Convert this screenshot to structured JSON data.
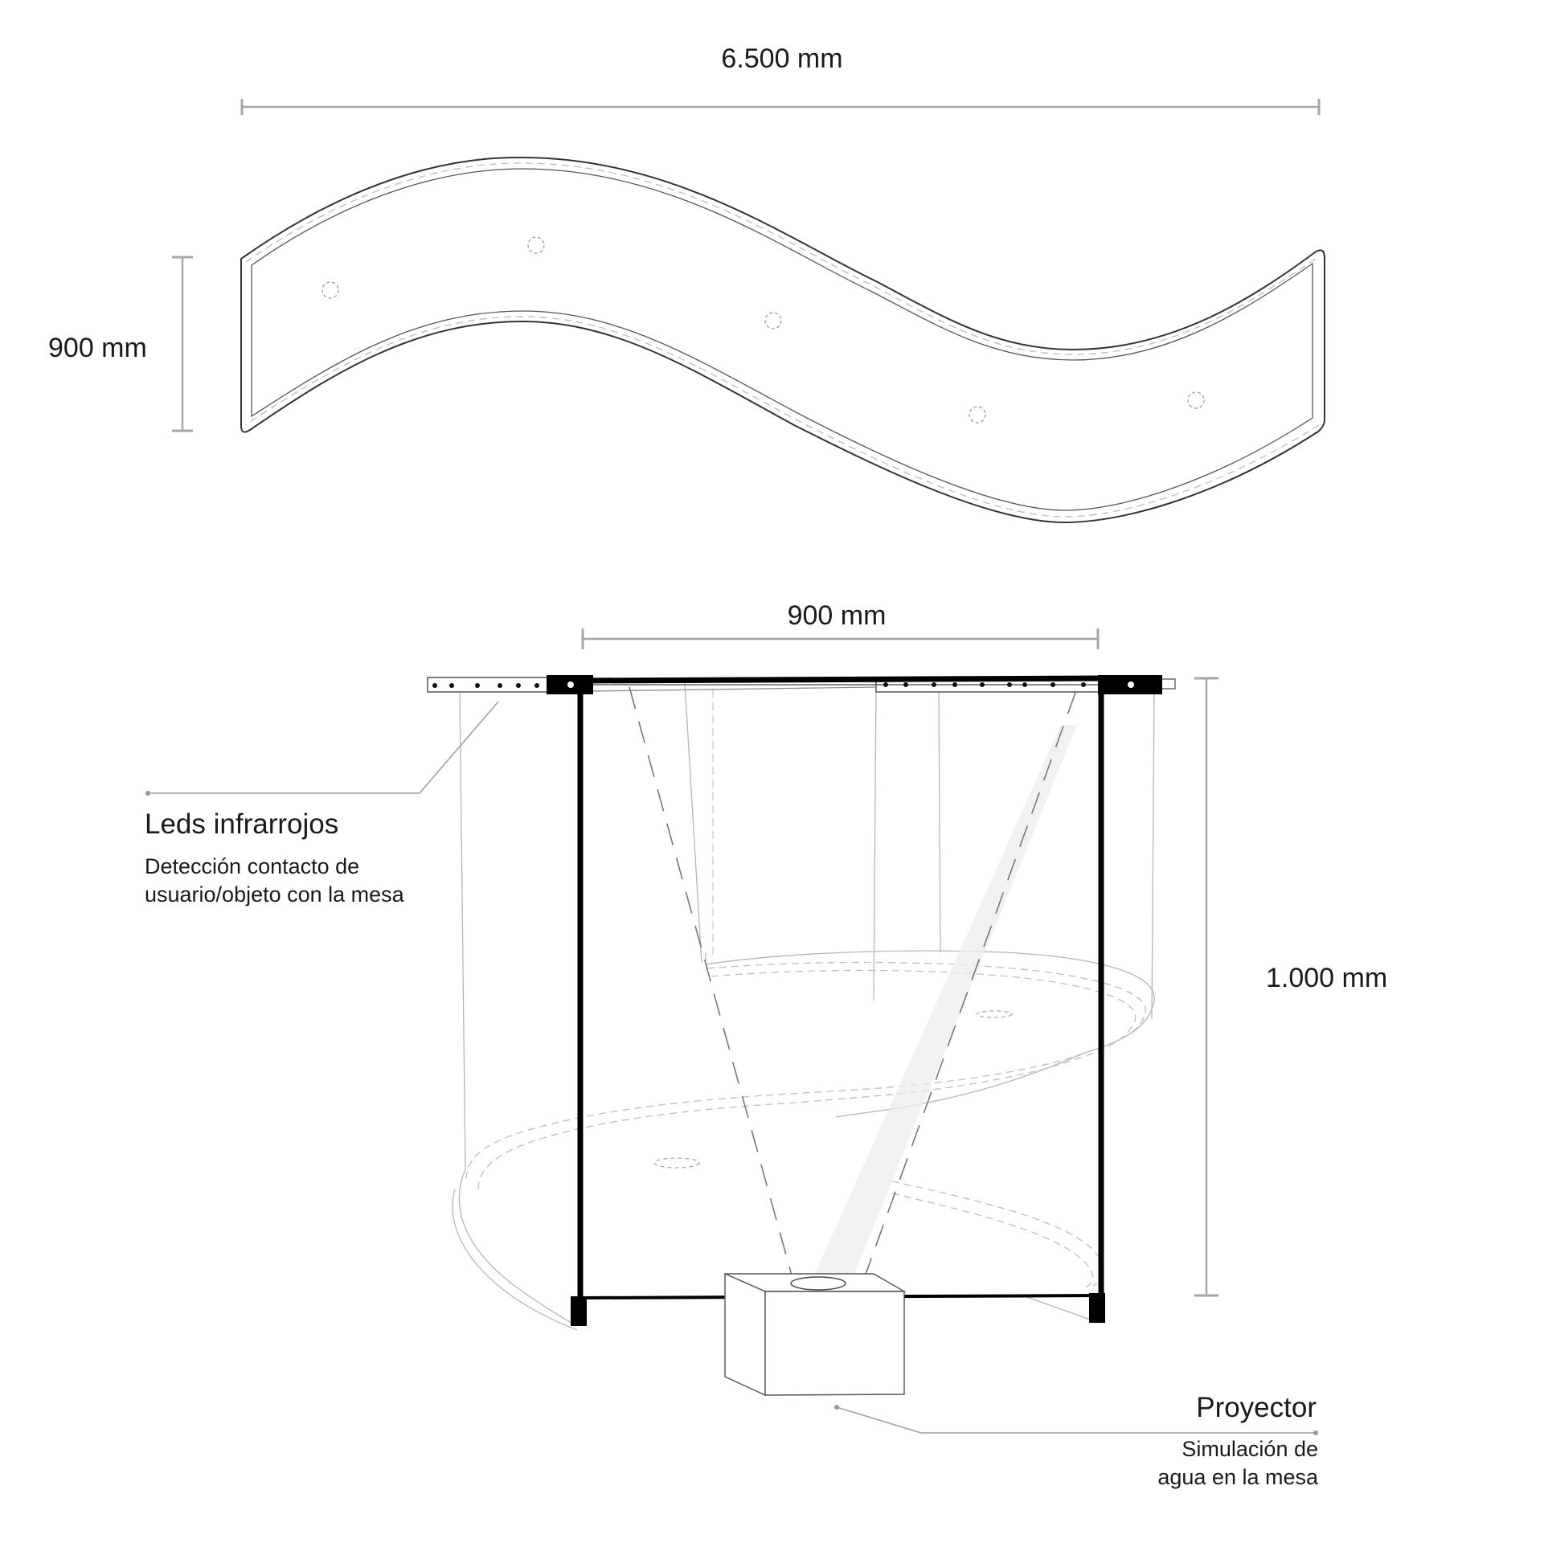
{
  "plan_view": {
    "width_dimension": "6.500 mm",
    "depth_dimension": "900 mm"
  },
  "section_view": {
    "top_width_dimension": "900 mm",
    "height_dimension": "1.000 mm"
  },
  "callouts": {
    "leds": {
      "title": "Leds infrarrojos",
      "line1": "Detección contacto de",
      "line2": "usuario/objeto con la mesa"
    },
    "projector": {
      "title": "Proyector",
      "line1": "Simulación de",
      "line2": "agua en la mesa"
    }
  },
  "colors": {
    "frame": "#000000",
    "table_fill": "#f4f4f4",
    "dimension": "#a6a6a6",
    "text": "#1a1a1a"
  }
}
